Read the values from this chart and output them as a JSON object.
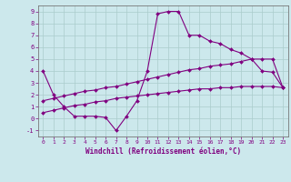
{
  "xlabel": "Windchill (Refroidissement éolien,°C)",
  "background_color": "#cce8ec",
  "line_color": "#800080",
  "grid_color": "#aacccc",
  "xlim": [
    -0.5,
    23.5
  ],
  "ylim": [
    -1.5,
    9.5
  ],
  "xticks": [
    0,
    1,
    2,
    3,
    4,
    5,
    6,
    7,
    8,
    9,
    10,
    11,
    12,
    13,
    14,
    15,
    16,
    17,
    18,
    19,
    20,
    21,
    22,
    23
  ],
  "yticks": [
    -1,
    0,
    1,
    2,
    3,
    4,
    5,
    6,
    7,
    8,
    9
  ],
  "series": [
    [
      4.0,
      2.0,
      1.0,
      0.2,
      0.2,
      0.2,
      0.1,
      -1.0,
      0.2,
      1.5,
      4.0,
      8.8,
      9.0,
      9.0,
      7.0,
      7.0,
      6.5,
      6.3,
      5.8,
      5.5,
      5.0,
      4.0,
      3.9,
      2.6
    ],
    [
      1.5,
      1.7,
      1.9,
      2.1,
      2.3,
      2.4,
      2.6,
      2.7,
      2.9,
      3.1,
      3.3,
      3.5,
      3.7,
      3.9,
      4.1,
      4.2,
      4.4,
      4.5,
      4.6,
      4.8,
      5.0,
      5.0,
      5.0,
      2.6
    ],
    [
      0.5,
      0.7,
      0.9,
      1.1,
      1.2,
      1.4,
      1.5,
      1.7,
      1.8,
      1.9,
      2.0,
      2.1,
      2.2,
      2.3,
      2.4,
      2.5,
      2.5,
      2.6,
      2.6,
      2.7,
      2.7,
      2.7,
      2.7,
      2.6
    ]
  ]
}
